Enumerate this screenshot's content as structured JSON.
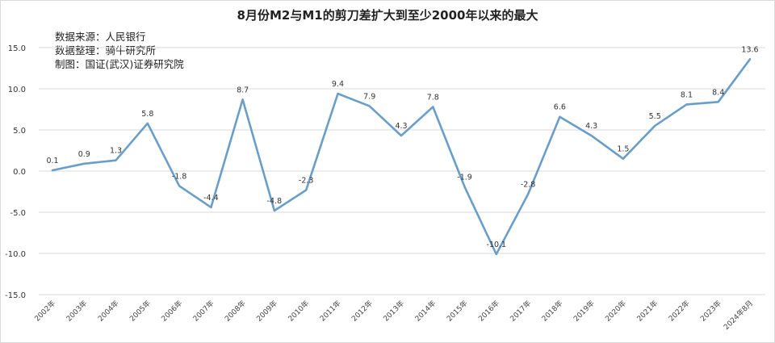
{
  "chart_data": {
    "type": "line",
    "title": "8月份M2与M1的剪刀差扩大到至少2000年以来的最大",
    "notes": [
      "数据来源：人民银行",
      "数据整理：骑牛研究所",
      "制图：国证(武汉)证券研究院"
    ],
    "xlabel": "",
    "ylabel": "",
    "categories": [
      "2002年",
      "2003年",
      "2004年",
      "2005年",
      "2006年",
      "2007年",
      "2008年",
      "2009年",
      "2010年",
      "2011年",
      "2012年",
      "2013年",
      "2014年",
      "2015年",
      "2016年",
      "2017年",
      "2018年",
      "2019年",
      "2020年",
      "2021年",
      "2022年",
      "2023年",
      "2024年8月"
    ],
    "series": [
      {
        "values": [
          0.1,
          0.9,
          1.3,
          5.8,
          -1.8,
          -4.4,
          8.7,
          -4.8,
          -2.3,
          9.4,
          7.9,
          4.3,
          7.8,
          -1.9,
          -10.1,
          -2.8,
          6.6,
          4.3,
          1.5,
          5.5,
          8.1,
          8.4,
          13.6
        ],
        "labels": [
          "0.1",
          "0.9",
          "1.3",
          "5.8",
          "-1.8",
          "-4.4",
          "8.7",
          "-4.8",
          "-2.3",
          "9.4",
          "7.9",
          "4.3",
          "7.8",
          "-1.9",
          "-10.1",
          "-2.8",
          "6.6",
          "4.3",
          "1.5",
          "5.5",
          "8.1",
          "8.4",
          "13.6"
        ]
      }
    ],
    "yticks": [
      "15.0",
      "10.0",
      "5.0",
      "0.0",
      "-5.0",
      "-10.0",
      "-15.0"
    ],
    "ylim": [
      -15,
      15
    ],
    "grid": true,
    "line_color": "#6a9ec9",
    "grid_color": "#d9d9d9"
  }
}
